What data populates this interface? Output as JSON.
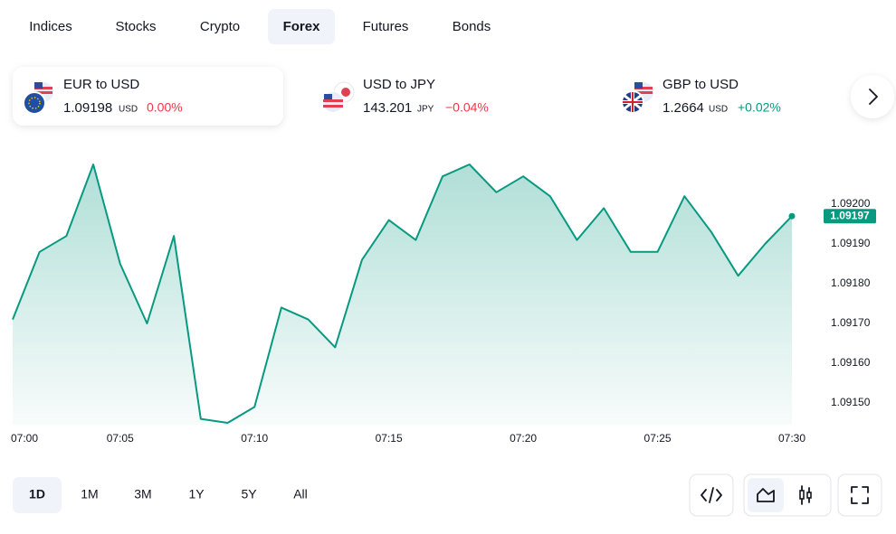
{
  "tabs": [
    "Indices",
    "Stocks",
    "Crypto",
    "Forex",
    "Futures",
    "Bonds"
  ],
  "tickers": [
    {
      "name": "EUR to USD",
      "price": "1.09198",
      "unit": "USD",
      "change": "0.00%"
    },
    {
      "name": "USD to JPY",
      "price": "143.201",
      "unit": "JPY",
      "change": "−0.04%"
    },
    {
      "name": "GBP to USD",
      "price": "1.2664",
      "unit": "USD",
      "change": "+0.02%"
    }
  ],
  "chart_data": {
    "type": "line",
    "color": "#089981",
    "x": [
      1,
      2,
      3,
      4,
      5,
      6,
      7,
      8,
      9,
      10,
      11,
      12,
      13,
      14,
      15,
      16,
      17,
      18,
      19,
      20,
      21,
      22,
      23,
      24,
      25,
      26,
      27,
      28,
      29,
      30
    ],
    "values": [
      1.09171,
      1.09188,
      1.09192,
      1.0921,
      1.09185,
      1.0917,
      1.09192,
      1.09146,
      1.09145,
      1.09149,
      1.09174,
      1.09171,
      1.09164,
      1.09186,
      1.09196,
      1.09191,
      1.09207,
      1.0921,
      1.09203,
      1.09207,
      1.09202,
      1.09191,
      1.09199,
      1.09188,
      1.09188,
      1.09202,
      1.09193,
      1.09182,
      1.0919,
      1.09197
    ],
    "xlim": [
      1,
      30
    ],
    "xticks": [
      {
        "value": 0,
        "label": "07:00"
      },
      {
        "value": 5,
        "label": "07:05"
      },
      {
        "value": 10,
        "label": "07:10"
      },
      {
        "value": 15,
        "label": "07:15"
      },
      {
        "value": 20,
        "label": "07:20"
      },
      {
        "value": 25,
        "label": "07:25"
      },
      {
        "value": 30,
        "label": "07:30"
      }
    ],
    "ylim": [
      1.09144,
      1.09214
    ],
    "yticks": [
      {
        "value": 1.0915,
        "label": "1.09150"
      },
      {
        "value": 1.0916,
        "label": "1.09160"
      },
      {
        "value": 1.0917,
        "label": "1.09170"
      },
      {
        "value": 1.0918,
        "label": "1.09180"
      },
      {
        "value": 1.0919,
        "label": "1.09190"
      },
      {
        "value": 1.092,
        "label": "1.09200"
      }
    ]
  },
  "ranges": [
    "1D",
    "1M",
    "3M",
    "1Y",
    "5Y",
    "All"
  ]
}
